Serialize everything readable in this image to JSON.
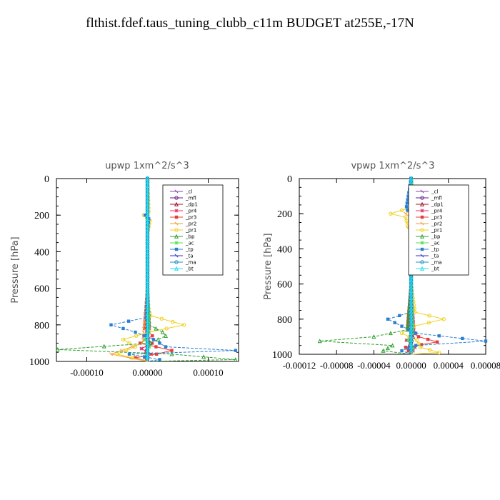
{
  "title": "flthist.fdef.taus_tuning_clubb_c11m  BUDGET at255E,-17N",
  "chart_data": [
    {
      "type": "line",
      "title": "upwp   1xm^2/s^3",
      "ylabel": "Pressure [hPa]",
      "xlim": [
        -0.00015,
        0.00015
      ],
      "ylim": [
        1000,
        0
      ],
      "yticks": [
        0,
        200,
        400,
        600,
        800,
        1000
      ],
      "xticks": [
        -0.0001,
        0,
        0.0001
      ],
      "xtick_labels": [
        "-0.00010",
        "0.00000",
        "0.00010"
      ],
      "legend_position": "top-right",
      "series": [
        {
          "name": "_cl",
          "color": "#8a3fb0",
          "p": [
            0,
            300,
            600,
            850,
            900,
            950,
            1000
          ],
          "v": [
            0,
            0,
            0,
            0,
            0,
            0,
            0
          ]
        },
        {
          "name": "_mfl",
          "color": "#5b1f8c",
          "p": [
            0,
            300,
            600,
            850,
            900,
            950,
            1000
          ],
          "v": [
            0,
            0,
            0,
            0,
            0,
            0,
            0
          ]
        },
        {
          "name": "_dp1",
          "color": "#a0102a",
          "p": [
            0,
            300,
            600,
            850,
            900,
            950,
            1000
          ],
          "v": [
            0,
            0,
            0,
            0,
            2e-06,
            -3e-06,
            0
          ]
        },
        {
          "name": "_pr4",
          "color": "#e0306a",
          "p": [
            0,
            300,
            600,
            820,
            860,
            900,
            930,
            960,
            980,
            1000
          ],
          "v": [
            0,
            0,
            0,
            3e-06,
            -6e-06,
            8e-06,
            -1e-05,
            6e-06,
            -4e-06,
            0
          ]
        },
        {
          "name": "_pr3",
          "color": "#e83c3c",
          "p": [
            0,
            300,
            600,
            820,
            860,
            900,
            940,
            960,
            980,
            1000
          ],
          "v": [
            0,
            0,
            0,
            -5e-06,
            8e-06,
            -1.2e-05,
            4e-05,
            1.5e-05,
            -2e-05,
            0
          ]
        },
        {
          "name": "_pr2",
          "color": "#f59a30",
          "p": [
            0,
            180,
            200,
            220,
            300,
            600,
            900,
            960,
            1000
          ],
          "v": [
            0,
            1e-06,
            -4e-06,
            3e-06,
            0,
            0,
            -8e-06,
            -6e-05,
            0
          ]
        },
        {
          "name": "_pr1",
          "color": "#f0d020",
          "p": [
            0,
            180,
            200,
            230,
            300,
            600,
            700,
            750,
            800,
            840,
            880,
            920,
            960,
            1000
          ],
          "v": [
            0,
            2e-06,
            -6e-06,
            4e-06,
            0,
            0,
            0,
            5e-06,
            6e-05,
            3e-06,
            -4e-05,
            -2e-05,
            -5e-05,
            0
          ]
        },
        {
          "name": "_bp",
          "color": "#2fa02f",
          "p": [
            0,
            300,
            600,
            800,
            840,
            860,
            900,
            935,
            960,
            990,
            1000
          ],
          "v": [
            0,
            0,
            0,
            3e-06,
            2.5e-05,
            3e-05,
            5e-06,
            -0.000148,
            4e-05,
            0.000145,
            0
          ]
        },
        {
          "name": "_ac",
          "color": "#50e050",
          "p": [
            0,
            300,
            600,
            840,
            880,
            920,
            960,
            1000
          ],
          "v": [
            0,
            0,
            0,
            2e-06,
            -4e-06,
            3e-06,
            -2e-06,
            0
          ]
        },
        {
          "name": "_tp",
          "color": "#2a7fd0",
          "p": [
            0,
            180,
            200,
            220,
            300,
            600,
            760,
            800,
            840,
            880,
            920,
            940,
            960,
            990,
            1000
          ],
          "v": [
            0,
            0,
            -4e-06,
            2e-06,
            0,
            0,
            -2e-06,
            -6e-05,
            -2e-05,
            1e-05,
            3e-05,
            0.000145,
            -3e-05,
            2e-05,
            0
          ]
        },
        {
          "name": "_ta",
          "color": "#3030c0",
          "p": [
            0,
            300,
            600,
            900,
            1000
          ],
          "v": [
            0,
            0,
            0,
            0,
            0
          ]
        },
        {
          "name": "_ma",
          "color": "#2090c0",
          "p": [
            0,
            300,
            600,
            900,
            1000
          ],
          "v": [
            0,
            0,
            0,
            0,
            0
          ]
        },
        {
          "name": "_bt",
          "color": "#20e0f0",
          "p": [
            0,
            300,
            600,
            900,
            1000
          ],
          "v": [
            0,
            0,
            0,
            0,
            0
          ]
        }
      ]
    },
    {
      "type": "line",
      "title": "vpwp   1xm^2/s^3",
      "ylabel": "Pressure [hPa]",
      "xlim": [
        -0.00012,
        8e-05
      ],
      "ylim": [
        1000,
        0
      ],
      "yticks": [
        0,
        200,
        400,
        600,
        800,
        1000
      ],
      "xticks": [
        -0.00012,
        -8e-05,
        -4e-05,
        0,
        4e-05,
        8e-05
      ],
      "xtick_labels": [
        "-0.00012",
        "-0.00008",
        "-0.00004",
        "0.00000",
        "0.00004",
        "0.00008"
      ],
      "legend_position": "top-right",
      "series": [
        {
          "name": "_cl",
          "color": "#8a3fb0",
          "p": [
            0,
            300,
            600,
            850,
            900,
            950,
            1000
          ],
          "v": [
            0,
            0,
            0,
            0,
            0,
            0,
            0
          ]
        },
        {
          "name": "_mfl",
          "color": "#5b1f8c",
          "p": [
            0,
            300,
            600,
            850,
            900,
            950,
            1000
          ],
          "v": [
            0,
            0,
            0,
            0,
            0,
            0,
            0
          ]
        },
        {
          "name": "_dp1",
          "color": "#a0102a",
          "p": [
            0,
            300,
            600,
            900,
            950,
            1000
          ],
          "v": [
            0,
            0,
            0,
            2e-06,
            -2e-06,
            0
          ]
        },
        {
          "name": "_pr4",
          "color": "#e0306a",
          "p": [
            0,
            300,
            600,
            880,
            920,
            960,
            1000
          ],
          "v": [
            0,
            0,
            0,
            3e-06,
            -5e-06,
            4e-06,
            0
          ]
        },
        {
          "name": "_pr3",
          "color": "#e83c3c",
          "p": [
            0,
            300,
            600,
            860,
            900,
            930,
            960,
            1000
          ],
          "v": [
            0,
            0,
            0,
            -4e-06,
            8e-06,
            2.8e-05,
            -6e-06,
            0
          ]
        },
        {
          "name": "_pr2",
          "color": "#f59a30",
          "p": [
            0,
            160,
            200,
            240,
            280,
            300,
            600,
            1000
          ],
          "v": [
            0,
            3e-06,
            -6e-06,
            4e-06,
            -4e-06,
            0,
            0,
            0
          ]
        },
        {
          "name": "_pr1",
          "color": "#f0d020",
          "p": [
            0,
            160,
            180,
            200,
            220,
            260,
            300,
            600,
            760,
            800,
            840,
            880,
            920,
            960,
            990,
            1000
          ],
          "v": [
            0,
            4e-06,
            -1e-05,
            -2.2e-05,
            -6e-06,
            -4e-06,
            0,
            0,
            4e-06,
            3.5e-05,
            3e-06,
            -1e-05,
            6e-06,
            1e-05,
            3e-05,
            0
          ]
        },
        {
          "name": "_bp",
          "color": "#2fa02f",
          "p": [
            0,
            300,
            600,
            860,
            900,
            925,
            950,
            980,
            1000
          ],
          "v": [
            0,
            0,
            0,
            -4e-06,
            -4e-05,
            -9.8e-05,
            -2e-05,
            -3e-05,
            0
          ]
        },
        {
          "name": "_ac",
          "color": "#50e050",
          "p": [
            0,
            300,
            600,
            880,
            920,
            960,
            1000
          ],
          "v": [
            0,
            0,
            0,
            2e-06,
            -3e-06,
            2e-06,
            0
          ]
        },
        {
          "name": "_tp",
          "color": "#2a7fd0",
          "p": [
            0,
            160,
            180,
            200,
            220,
            260,
            300,
            600,
            760,
            800,
            840,
            880,
            910,
            925,
            950,
            980,
            1000
          ],
          "v": [
            0,
            -5e-06,
            -4e-06,
            2e-06,
            1e-05,
            1e-06,
            0,
            0,
            0,
            -2.5e-05,
            -1e-05,
            5e-06,
            5.5e-05,
            8e-05,
            5e-06,
            -1e-05,
            0
          ]
        },
        {
          "name": "_ta",
          "color": "#3030c0",
          "p": [
            0,
            300,
            600,
            900,
            1000
          ],
          "v": [
            0,
            0,
            0,
            0,
            0
          ]
        },
        {
          "name": "_ma",
          "color": "#2090c0",
          "p": [
            0,
            300,
            600,
            900,
            1000
          ],
          "v": [
            0,
            0,
            0,
            0,
            0
          ]
        },
        {
          "name": "_bt",
          "color": "#20e0f0",
          "p": [
            0,
            300,
            600,
            900,
            1000
          ],
          "v": [
            0,
            0,
            0,
            0,
            0
          ]
        }
      ]
    }
  ]
}
